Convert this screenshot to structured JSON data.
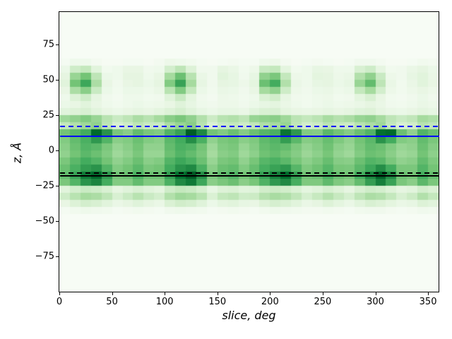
{
  "figure": {
    "background": "#ffffff"
  },
  "chart_data": {
    "type": "heatmap",
    "title": "",
    "xlabel": "slice, deg",
    "ylabel": "z, Å",
    "xlim": [
      0,
      360
    ],
    "ylim": [
      -100,
      98
    ],
    "x_ticks": [
      0,
      50,
      100,
      150,
      200,
      250,
      300,
      350
    ],
    "y_ticks": [
      75,
      50,
      25,
      0,
      -25,
      -50,
      -75
    ],
    "grid": false,
    "legend": null,
    "colormap": {
      "name": "Greens",
      "stops": [
        "#f7fcf5",
        "#e5f5e0",
        "#c7e9c0",
        "#a1d99b",
        "#74c476",
        "#41ab5d",
        "#238b45",
        "#006d2c",
        "#00441b"
      ]
    },
    "heatmap": {
      "x_start": 0,
      "x_bin_deg": 10,
      "y_top": 65,
      "y_bin_angstrom": 5,
      "value_scale": 100,
      "matrix": [
        [
          2,
          6,
          6,
          3,
          1,
          1,
          2,
          2,
          1,
          3,
          7,
          6,
          4,
          2,
          1,
          2,
          3,
          2,
          2,
          6,
          7,
          3,
          1,
          2,
          3,
          2,
          1,
          2,
          5,
          5,
          3,
          1,
          1,
          2,
          4,
          3
        ],
        [
          8,
          22,
          26,
          14,
          4,
          6,
          10,
          10,
          5,
          6,
          20,
          28,
          16,
          5,
          5,
          12,
          9,
          4,
          7,
          24,
          26,
          13,
          4,
          6,
          11,
          10,
          6,
          6,
          18,
          22,
          12,
          4,
          5,
          9,
          12,
          8
        ],
        [
          12,
          40,
          50,
          28,
          8,
          6,
          12,
          12,
          6,
          10,
          36,
          52,
          30,
          9,
          5,
          14,
          11,
          5,
          11,
          42,
          48,
          26,
          7,
          6,
          13,
          12,
          7,
          9,
          32,
          42,
          24,
          7,
          5,
          11,
          14,
          9
        ],
        [
          14,
          50,
          64,
          34,
          10,
          5,
          10,
          12,
          8,
          12,
          46,
          66,
          36,
          11,
          5,
          12,
          11,
          7,
          13,
          52,
          62,
          32,
          9,
          6,
          11,
          12,
          8,
          11,
          40,
          54,
          28,
          9,
          4,
          9,
          14,
          10
        ],
        [
          10,
          34,
          44,
          24,
          8,
          4,
          8,
          8,
          6,
          9,
          30,
          46,
          26,
          8,
          4,
          9,
          8,
          5,
          10,
          36,
          42,
          22,
          7,
          5,
          8,
          9,
          6,
          8,
          26,
          36,
          20,
          7,
          4,
          7,
          10,
          7
        ],
        [
          6,
          16,
          22,
          12,
          5,
          3,
          6,
          6,
          4,
          5,
          15,
          24,
          13,
          5,
          3,
          7,
          6,
          4,
          6,
          17,
          21,
          11,
          5,
          4,
          6,
          7,
          4,
          5,
          13,
          18,
          10,
          4,
          3,
          5,
          8,
          5
        ],
        [
          8,
          10,
          14,
          10,
          6,
          4,
          6,
          8,
          6,
          7,
          10,
          15,
          11,
          6,
          5,
          7,
          7,
          5,
          8,
          11,
          13,
          9,
          6,
          4,
          6,
          8,
          6,
          7,
          9,
          12,
          9,
          5,
          4,
          6,
          9,
          7
        ],
        [
          14,
          16,
          18,
          14,
          10,
          8,
          10,
          12,
          10,
          13,
          16,
          19,
          15,
          11,
          8,
          11,
          11,
          9,
          14,
          17,
          18,
          13,
          10,
          9,
          10,
          12,
          10,
          12,
          15,
          16,
          12,
          9,
          8,
          10,
          13,
          11
        ],
        [
          38,
          42,
          46,
          40,
          30,
          24,
          28,
          34,
          30,
          36,
          44,
          48,
          42,
          32,
          23,
          30,
          32,
          28,
          40,
          42,
          44,
          38,
          29,
          26,
          29,
          35,
          31,
          34,
          40,
          42,
          36,
          28,
          24,
          27,
          36,
          33
        ],
        [
          26,
          32,
          38,
          42,
          28,
          18,
          22,
          28,
          24,
          24,
          34,
          40,
          44,
          30,
          17,
          24,
          26,
          22,
          27,
          33,
          36,
          40,
          27,
          20,
          23,
          29,
          25,
          23,
          30,
          34,
          38,
          26,
          18,
          21,
          30,
          27
        ],
        [
          50,
          56,
          62,
          88,
          72,
          48,
          44,
          54,
          48,
          46,
          58,
          66,
          92,
          76,
          50,
          46,
          52,
          45,
          52,
          57,
          60,
          84,
          70,
          46,
          45,
          56,
          50,
          45,
          52,
          58,
          86,
          88,
          52,
          42,
          58,
          52
        ],
        [
          46,
          54,
          60,
          70,
          58,
          44,
          46,
          52,
          46,
          44,
          56,
          62,
          74,
          60,
          42,
          48,
          50,
          44,
          47,
          55,
          58,
          68,
          56,
          45,
          47,
          53,
          47,
          42,
          50,
          56,
          72,
          62,
          46,
          44,
          54,
          48
        ],
        [
          44,
          52,
          58,
          56,
          48,
          40,
          44,
          50,
          42,
          42,
          54,
          60,
          58,
          50,
          38,
          46,
          48,
          40,
          45,
          53,
          56,
          54,
          47,
          41,
          45,
          51,
          43,
          40,
          48,
          54,
          52,
          46,
          40,
          42,
          52,
          45
        ],
        [
          42,
          50,
          56,
          52,
          46,
          38,
          42,
          48,
          40,
          40,
          52,
          58,
          54,
          48,
          36,
          44,
          46,
          38,
          43,
          51,
          54,
          50,
          45,
          39,
          43,
          49,
          41,
          38,
          46,
          52,
          50,
          44,
          38,
          40,
          50,
          43
        ],
        [
          48,
          56,
          62,
          58,
          50,
          42,
          46,
          52,
          44,
          46,
          58,
          64,
          60,
          52,
          40,
          48,
          50,
          42,
          49,
          57,
          60,
          56,
          49,
          43,
          47,
          53,
          45,
          44,
          52,
          58,
          56,
          48,
          42,
          44,
          54,
          47
        ],
        [
          52,
          60,
          68,
          72,
          58,
          46,
          50,
          56,
          48,
          50,
          62,
          72,
          76,
          60,
          44,
          52,
          54,
          46,
          53,
          61,
          66,
          70,
          57,
          47,
          51,
          57,
          49,
          48,
          56,
          64,
          74,
          62,
          48,
          48,
          58,
          50
        ],
        [
          54,
          66,
          82,
          90,
          70,
          50,
          52,
          60,
          52,
          52,
          68,
          86,
          94,
          74,
          48,
          54,
          58,
          50,
          55,
          67,
          80,
          88,
          68,
          51,
          53,
          61,
          53,
          50,
          62,
          78,
          92,
          76,
          52,
          50,
          62,
          54
        ],
        [
          48,
          58,
          72,
          78,
          62,
          46,
          46,
          54,
          46,
          46,
          60,
          76,
          82,
          64,
          44,
          48,
          52,
          44,
          49,
          59,
          70,
          76,
          61,
          47,
          47,
          55,
          47,
          44,
          54,
          68,
          80,
          66,
          48,
          44,
          56,
          48
        ],
        [
          14,
          20,
          24,
          22,
          18,
          12,
          15,
          18,
          15,
          13,
          22,
          26,
          24,
          19,
          11,
          16,
          17,
          14,
          15,
          21,
          23,
          21,
          17,
          13,
          15,
          19,
          16,
          12,
          18,
          22,
          20,
          16,
          12,
          14,
          20,
          17
        ],
        [
          22,
          30,
          36,
          34,
          28,
          18,
          24,
          30,
          24,
          20,
          32,
          38,
          36,
          30,
          17,
          26,
          28,
          22,
          23,
          31,
          35,
          33,
          27,
          19,
          25,
          31,
          25,
          19,
          28,
          34,
          32,
          26,
          18,
          23,
          32,
          26
        ],
        [
          10,
          16,
          20,
          18,
          14,
          9,
          12,
          15,
          12,
          9,
          17,
          21,
          19,
          15,
          8,
          13,
          14,
          11,
          10,
          16,
          19,
          17,
          14,
          9,
          12,
          16,
          13,
          9,
          14,
          18,
          16,
          13,
          9,
          11,
          16,
          14
        ],
        [
          2,
          4,
          6,
          5,
          4,
          2,
          3,
          4,
          3,
          2,
          5,
          6,
          5,
          4,
          2,
          3,
          4,
          3,
          2,
          4,
          6,
          5,
          4,
          3,
          3,
          4,
          3,
          2,
          4,
          5,
          5,
          3,
          2,
          3,
          5,
          4
        ]
      ]
    },
    "lines": [
      {
        "name": "blue-dashed-hline",
        "color": "#0000ff",
        "style": "dashed",
        "y": 17.5
      },
      {
        "name": "blue-solid-hline",
        "color": "#0000ff",
        "style": "solid",
        "y": 10.6
      },
      {
        "name": "black-dashed-hline",
        "color": "#000000",
        "style": "dashed",
        "y": -15.6
      },
      {
        "name": "black-solid-hline",
        "color": "#000000",
        "style": "solid",
        "y": -17.3
      }
    ]
  }
}
